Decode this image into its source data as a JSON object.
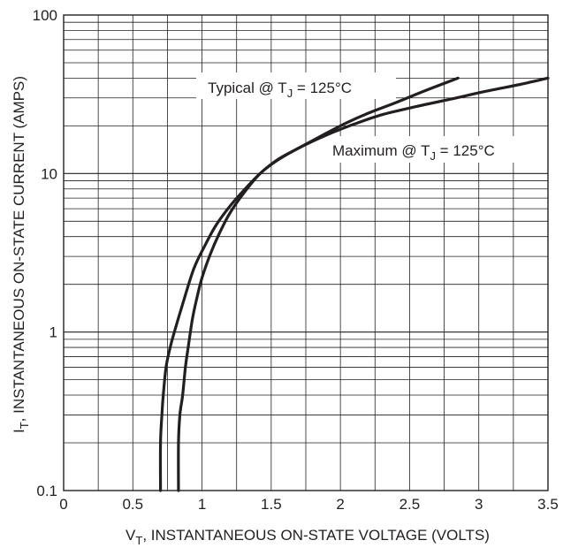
{
  "chart_data": {
    "type": "line",
    "xlabel_main": "V",
    "xlabel_sub": "T",
    "xlabel_rest": ", INSTANTANEOUS ON-STATE VOLTAGE (VOLTS)",
    "ylabel_main": "I",
    "ylabel_sub": "T",
    "ylabel_rest": ", INSTANTANEOUS ON-STATE CURRENT (AMPS)",
    "x_scale": "linear",
    "y_scale": "log",
    "xlim": [
      0,
      3.5
    ],
    "ylim": [
      0.1,
      100
    ],
    "x_ticks": [
      0,
      0.5,
      1,
      1.5,
      2,
      2.5,
      3,
      3.5
    ],
    "x_tick_labels": [
      "0",
      "0.5",
      "1",
      "1.5",
      "2",
      "2.5",
      "3",
      "3.5"
    ],
    "y_ticks": [
      0.1,
      1,
      10,
      100
    ],
    "y_tick_labels": [
      "0.1",
      "1",
      "10",
      "100"
    ],
    "grid": true,
    "series": [
      {
        "name": "Typical @ TJ = 125°C",
        "label_prefix": "Typical @ T",
        "label_sub": "J",
        "label_suffix": " = 125°C",
        "x": [
          0.7,
          0.7,
          0.71,
          0.72,
          0.74,
          0.77,
          0.8,
          0.86,
          0.94,
          1.02,
          1.1,
          1.2,
          1.3,
          1.42,
          1.55,
          1.7,
          1.9,
          2.05,
          2.2,
          2.4,
          2.6,
          2.85
        ],
        "y": [
          0.1,
          0.2,
          0.3,
          0.4,
          0.6,
          0.8,
          1.0,
          1.5,
          2.5,
          3.5,
          4.7,
          6.2,
          7.8,
          10,
          12.3,
          14.5,
          18,
          21,
          24,
          28,
          33,
          40
        ]
      },
      {
        "name": "Maximum @ TJ = 125°C",
        "label_prefix": "Maximum @ T",
        "label_sub": "J",
        "label_suffix": " = 125°C",
        "x": [
          0.83,
          0.83,
          0.84,
          0.86,
          0.88,
          0.9,
          0.93,
          0.96,
          1.0,
          1.06,
          1.12,
          1.2,
          1.3,
          1.42,
          1.55,
          1.7,
          1.9,
          2.1,
          2.3,
          2.55,
          2.8,
          3.05,
          3.3,
          3.5
        ],
        "y": [
          0.1,
          0.2,
          0.3,
          0.4,
          0.6,
          0.8,
          1.2,
          1.6,
          2.2,
          3.1,
          4.1,
          5.6,
          7.5,
          10,
          12.2,
          14.5,
          17.5,
          20.5,
          23.5,
          26.5,
          29.5,
          33,
          36.5,
          40
        ]
      }
    ]
  }
}
